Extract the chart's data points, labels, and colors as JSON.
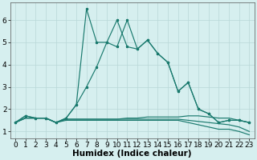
{
  "xlabel": "Humidex (Indice chaleur)",
  "bg_color": "#d6efef",
  "grid_color": "#b8d8d8",
  "line_color": "#1a7a6e",
  "xlim": [
    -0.5,
    23.5
  ],
  "ylim": [
    0.7,
    6.8
  ],
  "yticks": [
    1,
    2,
    3,
    4,
    5,
    6
  ],
  "xticks": [
    0,
    1,
    2,
    3,
    4,
    5,
    6,
    7,
    8,
    9,
    10,
    11,
    12,
    13,
    14,
    15,
    16,
    17,
    18,
    19,
    20,
    21,
    22,
    23
  ],
  "series_main": [
    1.4,
    1.7,
    1.6,
    1.6,
    1.4,
    1.6,
    2.2,
    3.0,
    3.9,
    5.0,
    4.8,
    6.0,
    4.7,
    5.1,
    4.5,
    4.1,
    2.8,
    3.2,
    2.0,
    1.8,
    1.4,
    1.5,
    1.5,
    1.4
  ],
  "series_spike": [
    1.4,
    1.7,
    1.6,
    1.6,
    1.4,
    1.6,
    2.2,
    6.5,
    5.0,
    5.0,
    6.0,
    4.8,
    4.7,
    5.1,
    4.5,
    4.1,
    2.8,
    3.2,
    2.0,
    1.8,
    1.4,
    1.5,
    1.5,
    1.4
  ],
  "series_flat1": [
    1.4,
    1.6,
    1.6,
    1.6,
    1.4,
    1.55,
    1.55,
    1.55,
    1.55,
    1.55,
    1.55,
    1.6,
    1.6,
    1.65,
    1.65,
    1.65,
    1.65,
    1.7,
    1.7,
    1.65,
    1.6,
    1.6,
    1.5,
    1.4
  ],
  "series_flat2": [
    1.4,
    1.6,
    1.6,
    1.6,
    1.4,
    1.55,
    1.55,
    1.55,
    1.55,
    1.55,
    1.55,
    1.55,
    1.55,
    1.55,
    1.55,
    1.55,
    1.55,
    1.5,
    1.45,
    1.4,
    1.35,
    1.3,
    1.2,
    1.0
  ],
  "series_flat3": [
    1.4,
    1.6,
    1.6,
    1.6,
    1.4,
    1.5,
    1.5,
    1.5,
    1.5,
    1.5,
    1.5,
    1.5,
    1.5,
    1.5,
    1.5,
    1.5,
    1.5,
    1.4,
    1.3,
    1.2,
    1.1,
    1.1,
    1.0,
    0.85
  ],
  "tick_fontsize": 6.5,
  "axis_fontsize": 7.5
}
